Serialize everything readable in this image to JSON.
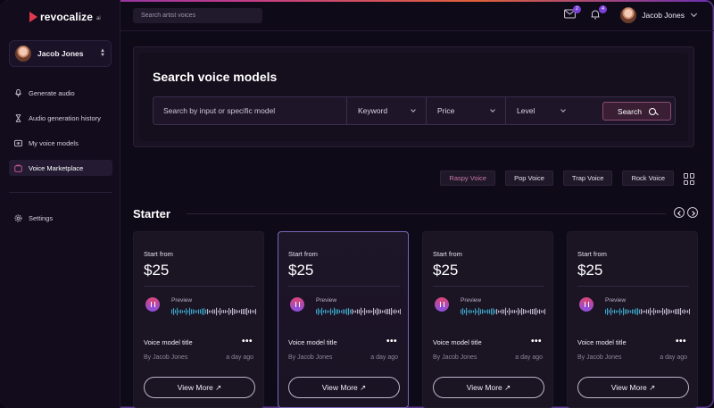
{
  "brand": {
    "name": "revocalize",
    "suffix": "ai"
  },
  "sidebar": {
    "user": {
      "name": "Jacob Jones"
    },
    "items": [
      {
        "label": "Generate audio",
        "icon": "microphone-icon"
      },
      {
        "label": "Audio generation history",
        "icon": "hourglass-icon"
      },
      {
        "label": "My voice models",
        "icon": "voice-model-icon"
      },
      {
        "label": "Voice Marketplace",
        "icon": "marketplace-icon",
        "active": true
      }
    ],
    "settings": {
      "label": "Settings",
      "icon": "gear-icon"
    }
  },
  "header": {
    "search_placeholder": "Search artist voices",
    "mail_badge": "2",
    "bell_badge": "4",
    "user_name": "Jacob Jones"
  },
  "search_panel": {
    "title": "Search voice models",
    "input_placeholder": "Search by input or specific model",
    "filters": [
      "Keyword",
      "Price",
      "Level"
    ],
    "button_label": "Search"
  },
  "tags": [
    {
      "label": "Raspy Voice",
      "active": true
    },
    {
      "label": "Pop Voice",
      "active": false
    },
    {
      "label": "Trap Voice",
      "active": false
    },
    {
      "label": "Rock Voice",
      "active": false
    }
  ],
  "section": {
    "title": "Starter"
  },
  "cards": [
    {
      "from_label": "Start from",
      "price": "$25",
      "preview_label": "Preview",
      "title": "Voice model title",
      "author": "By Jacob Jones",
      "ago": "a day ago",
      "button": "View More ↗",
      "highlight": false
    },
    {
      "from_label": "Start from",
      "price": "$25",
      "preview_label": "Preview",
      "title": "Voice model title",
      "author": "By Jacob Jones",
      "ago": "a day ago",
      "button": "View More ↗",
      "highlight": true
    },
    {
      "from_label": "Start from",
      "price": "$25",
      "preview_label": "Preview",
      "title": "Voice model title",
      "author": "By Jacob Jones",
      "ago": "a day ago",
      "button": "View More ↗",
      "highlight": false
    },
    {
      "from_label": "Start from",
      "price": "$25",
      "preview_label": "Preview",
      "title": "Voice model title",
      "author": "By Jacob Jones",
      "ago": "a day ago",
      "button": "View More ↗",
      "highlight": false
    }
  ],
  "colors": {
    "accent": "#7a3fd6",
    "brand_red": "#e0394e",
    "wave_played": "#3fa7c9",
    "wave_rest": "#bdb5c9"
  }
}
